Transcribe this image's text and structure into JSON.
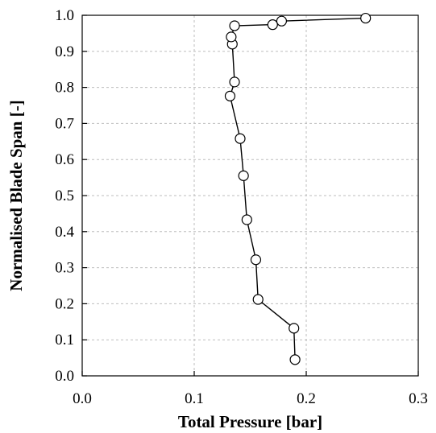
{
  "chart_data": {
    "type": "line",
    "title": "",
    "xlabel": "Total Pressure [bar]",
    "ylabel": "Normalised Blade Span [-]",
    "xlim": [
      0,
      0.3
    ],
    "ylim": [
      0,
      1.0
    ],
    "x_ticks": [
      "0.0",
      "0.1",
      "0.2",
      "0.3"
    ],
    "y_ticks": [
      "0.0",
      "0.1",
      "0.2",
      "0.3",
      "0.4",
      "0.5",
      "0.6",
      "0.7",
      "0.8",
      "0.9",
      "1.0"
    ],
    "grid": true,
    "marker": "open-circle",
    "series": [
      {
        "x": [
          0.19,
          0.189,
          0.157,
          0.155,
          0.147,
          0.144,
          0.141,
          0.132,
          0.136,
          0.134,
          0.133,
          0.136,
          0.17,
          0.178,
          0.253
        ],
        "y": [
          0.045,
          0.132,
          0.212,
          0.322,
          0.433,
          0.555,
          0.658,
          0.776,
          0.815,
          0.92,
          0.94,
          0.971,
          0.974,
          0.984,
          0.992
        ]
      }
    ]
  }
}
